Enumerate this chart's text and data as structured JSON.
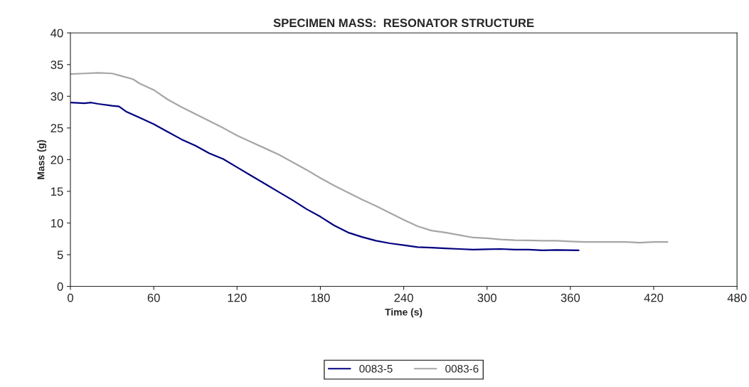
{
  "chart_data": {
    "type": "line",
    "title": "SPECIMEN MASS:  RESONATOR STRUCTURE",
    "xlabel": "Time (s)",
    "ylabel": "Mass (g)",
    "xlim": [
      0,
      480
    ],
    "xticks": [
      0,
      60,
      120,
      180,
      240,
      300,
      360,
      420,
      480
    ],
    "ylim": [
      0,
      40
    ],
    "yticks": [
      0,
      5,
      10,
      15,
      20,
      25,
      30,
      35,
      40
    ],
    "grid": false,
    "legend": "bottom",
    "marker": "none",
    "line_style": "solid",
    "series": [
      {
        "name": "0083-5",
        "color": "#000080",
        "x": [
          0,
          10,
          15,
          20,
          30,
          35,
          40,
          50,
          60,
          70,
          80,
          90,
          100,
          110,
          120,
          130,
          140,
          150,
          160,
          170,
          180,
          190,
          200,
          210,
          220,
          230,
          240,
          250,
          260,
          270,
          280,
          290,
          300,
          310,
          320,
          330,
          340,
          350,
          366
        ],
        "values": [
          29.0,
          28.9,
          29.0,
          28.8,
          28.5,
          28.4,
          27.6,
          26.6,
          25.6,
          24.4,
          23.2,
          22.2,
          21.0,
          20.1,
          18.8,
          17.5,
          16.2,
          14.9,
          13.6,
          12.2,
          11.0,
          9.6,
          8.5,
          7.8,
          7.2,
          6.8,
          6.5,
          6.2,
          6.1,
          6.0,
          5.9,
          5.8,
          5.85,
          5.9,
          5.8,
          5.8,
          5.7,
          5.75,
          5.7
        ]
      },
      {
        "name": "0083-6",
        "color": "#a6a6a6",
        "x": [
          0,
          10,
          20,
          30,
          35,
          45,
          50,
          60,
          70,
          80,
          90,
          100,
          110,
          120,
          130,
          140,
          150,
          160,
          170,
          180,
          190,
          200,
          210,
          220,
          230,
          240,
          250,
          260,
          270,
          280,
          290,
          300,
          310,
          320,
          330,
          340,
          350,
          360,
          370,
          380,
          390,
          400,
          410,
          420,
          430
        ],
        "values": [
          33.5,
          33.6,
          33.7,
          33.6,
          33.3,
          32.7,
          32.0,
          31.0,
          29.5,
          28.3,
          27.2,
          26.1,
          25.0,
          23.8,
          22.8,
          21.8,
          20.8,
          19.6,
          18.4,
          17.1,
          15.9,
          14.8,
          13.7,
          12.7,
          11.6,
          10.5,
          9.5,
          8.8,
          8.5,
          8.1,
          7.7,
          7.6,
          7.4,
          7.3,
          7.25,
          7.2,
          7.2,
          7.1,
          7.0,
          7.0,
          7.0,
          7.0,
          6.9,
          7.0,
          7.0
        ]
      }
    ]
  }
}
